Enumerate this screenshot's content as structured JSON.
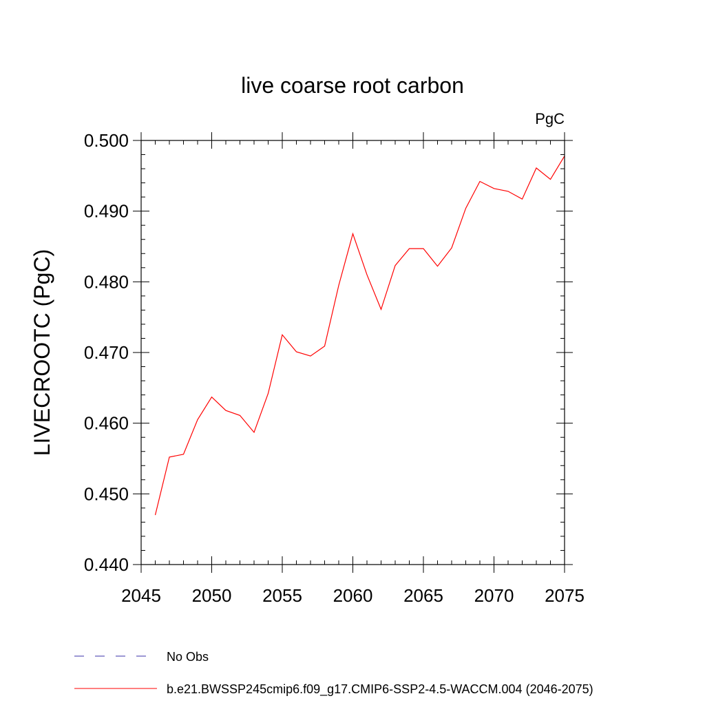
{
  "chart_data": {
    "type": "line",
    "title": "live coarse root carbon",
    "units": "PgC",
    "ylabel": "LIVECROOTC  (PgC)",
    "xlabel": "",
    "xlim": [
      2045,
      2075
    ],
    "ylim": [
      0.44,
      0.5
    ],
    "x_ticks": [
      2045,
      2050,
      2055,
      2060,
      2065,
      2070,
      2075
    ],
    "x_tick_labels": [
      "2045",
      "2050",
      "2055",
      "2060",
      "2065",
      "2070",
      "2075"
    ],
    "y_ticks": [
      0.44,
      0.45,
      0.46,
      0.47,
      0.48,
      0.49,
      0.5
    ],
    "y_tick_labels": [
      "0.440",
      "0.450",
      "0.460",
      "0.470",
      "0.480",
      "0.490",
      "0.500"
    ],
    "grid": false,
    "legend_position": "bottom",
    "series": [
      {
        "name": "No Obs",
        "color": "#3a2fa8",
        "dash": "dashed",
        "x": [],
        "values": []
      },
      {
        "name": "b.e21.BWSSP245cmip6.f09_g17.CMIP6-SSP2-4.5-WACCM.004 (2046-2075)",
        "color": "#ff0000",
        "dash": "solid",
        "x": [
          2046,
          2047,
          2048,
          2049,
          2050,
          2051,
          2052,
          2053,
          2054,
          2055,
          2056,
          2057,
          2058,
          2059,
          2060,
          2061,
          2062,
          2063,
          2064,
          2065,
          2066,
          2067,
          2068,
          2069,
          2070,
          2071,
          2072,
          2073,
          2074,
          2075
        ],
        "values": [
          0.447,
          0.4552,
          0.4556,
          0.4605,
          0.4637,
          0.4618,
          0.4611,
          0.4587,
          0.4642,
          0.4725,
          0.4701,
          0.4695,
          0.4709,
          0.4795,
          0.4868,
          0.481,
          0.4761,
          0.4823,
          0.4847,
          0.4847,
          0.4822,
          0.4848,
          0.4904,
          0.4942,
          0.4932,
          0.4928,
          0.4917,
          0.4961,
          0.4945,
          0.4978
        ]
      }
    ]
  }
}
